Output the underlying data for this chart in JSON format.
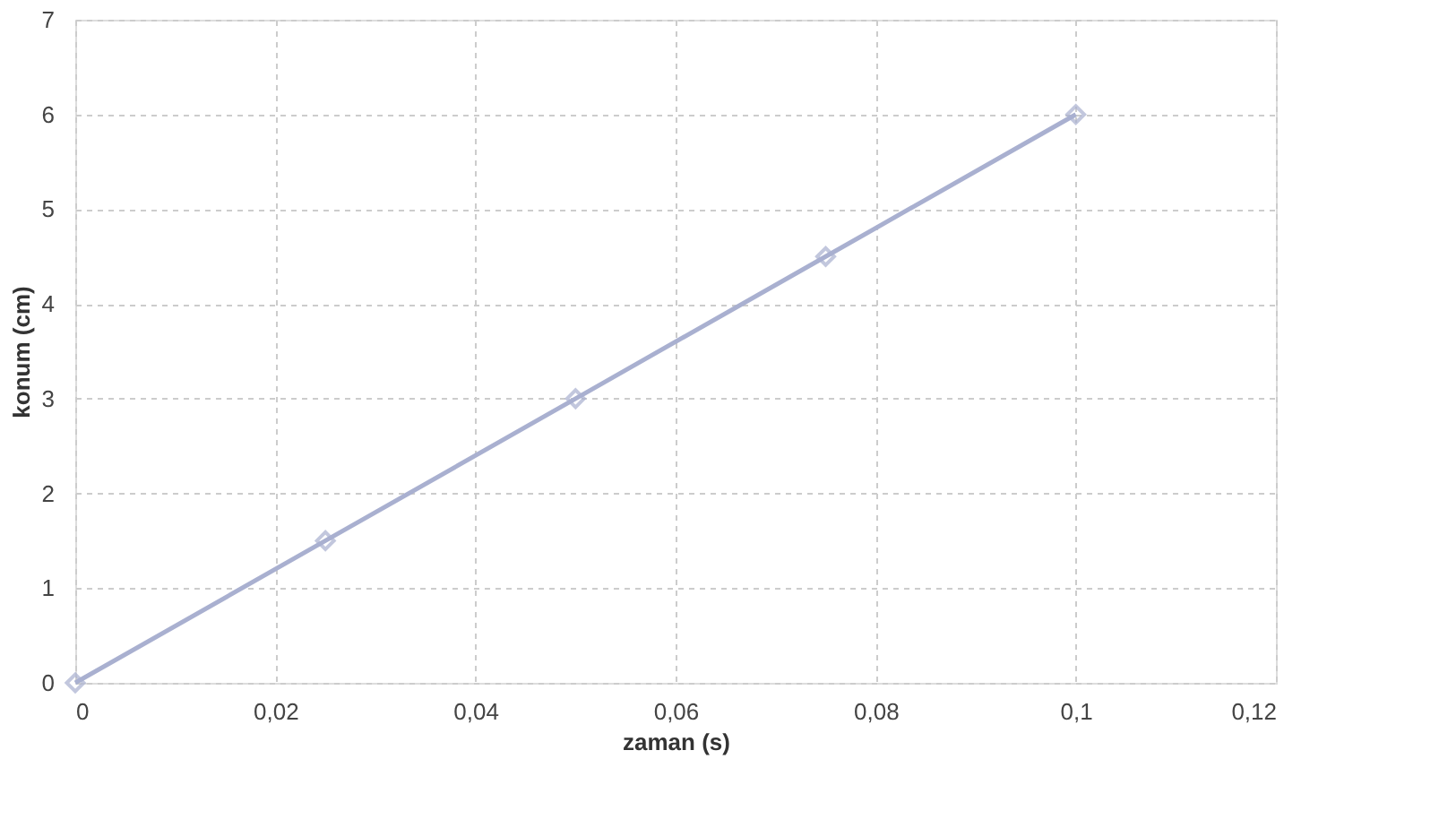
{
  "chart_data": {
    "type": "line",
    "xlabel": "zaman (s)",
    "ylabel": "konum (cm)",
    "x": [
      0,
      0.025,
      0.05,
      0.075,
      0.1
    ],
    "series": [
      {
        "color": "#a9b0d0",
        "values": [
          0,
          1.5,
          3.0,
          4.5,
          6.0
        ]
      }
    ],
    "xlim": [
      0,
      0.12
    ],
    "xticks": [
      0,
      {
        "value": 0.02,
        "label": "0,02"
      },
      {
        "value": 0.04,
        "label": "0,04"
      },
      {
        "value": 0.06,
        "label": "0,06"
      },
      {
        "value": 0.08,
        "label": "0,08"
      },
      {
        "value": 0.1,
        "label": "0,1"
      },
      {
        "value": 0.12,
        "label": "0,12"
      }
    ],
    "ylim": [
      0,
      7
    ],
    "yticks": [
      0,
      1,
      2,
      3,
      4,
      5,
      6,
      7
    ],
    "grid": true,
    "marker": "diamond",
    "line_style": "solid"
  }
}
